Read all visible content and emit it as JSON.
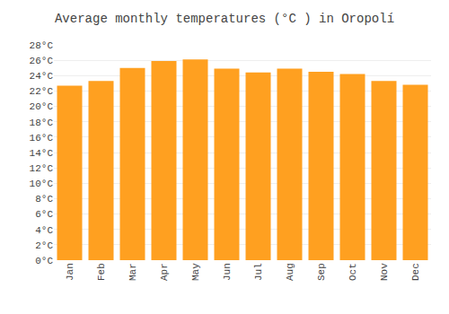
{
  "chart_data": {
    "type": "bar",
    "title": "Average monthly temperatures (°C ) in Oropolí",
    "categories": [
      "Jan",
      "Feb",
      "Mar",
      "Apr",
      "May",
      "Jun",
      "Jul",
      "Aug",
      "Sep",
      "Oct",
      "Nov",
      "Dec"
    ],
    "values": [
      22.7,
      23.3,
      25.0,
      25.9,
      26.1,
      24.9,
      24.4,
      24.9,
      24.5,
      24.2,
      23.3,
      22.8
    ],
    "color": "#FFA020",
    "ylim": [
      0,
      28
    ],
    "yticks": [
      {
        "value": 0,
        "label": "0°C"
      },
      {
        "value": 2,
        "label": "2°C"
      },
      {
        "value": 4,
        "label": "4°C"
      },
      {
        "value": 6,
        "label": "6°C"
      },
      {
        "value": 8,
        "label": "8°C"
      },
      {
        "value": 10,
        "label": "10°C"
      },
      {
        "value": 12,
        "label": "12°C"
      },
      {
        "value": 14,
        "label": "14°C"
      },
      {
        "value": 16,
        "label": "16°C"
      },
      {
        "value": 18,
        "label": "18°C"
      },
      {
        "value": 20,
        "label": "20°C"
      },
      {
        "value": 22,
        "label": "22°C"
      },
      {
        "value": 24,
        "label": "24°C"
      },
      {
        "value": 26,
        "label": "26°C"
      },
      {
        "value": 28,
        "label": "28°C"
      }
    ],
    "grid": true
  }
}
